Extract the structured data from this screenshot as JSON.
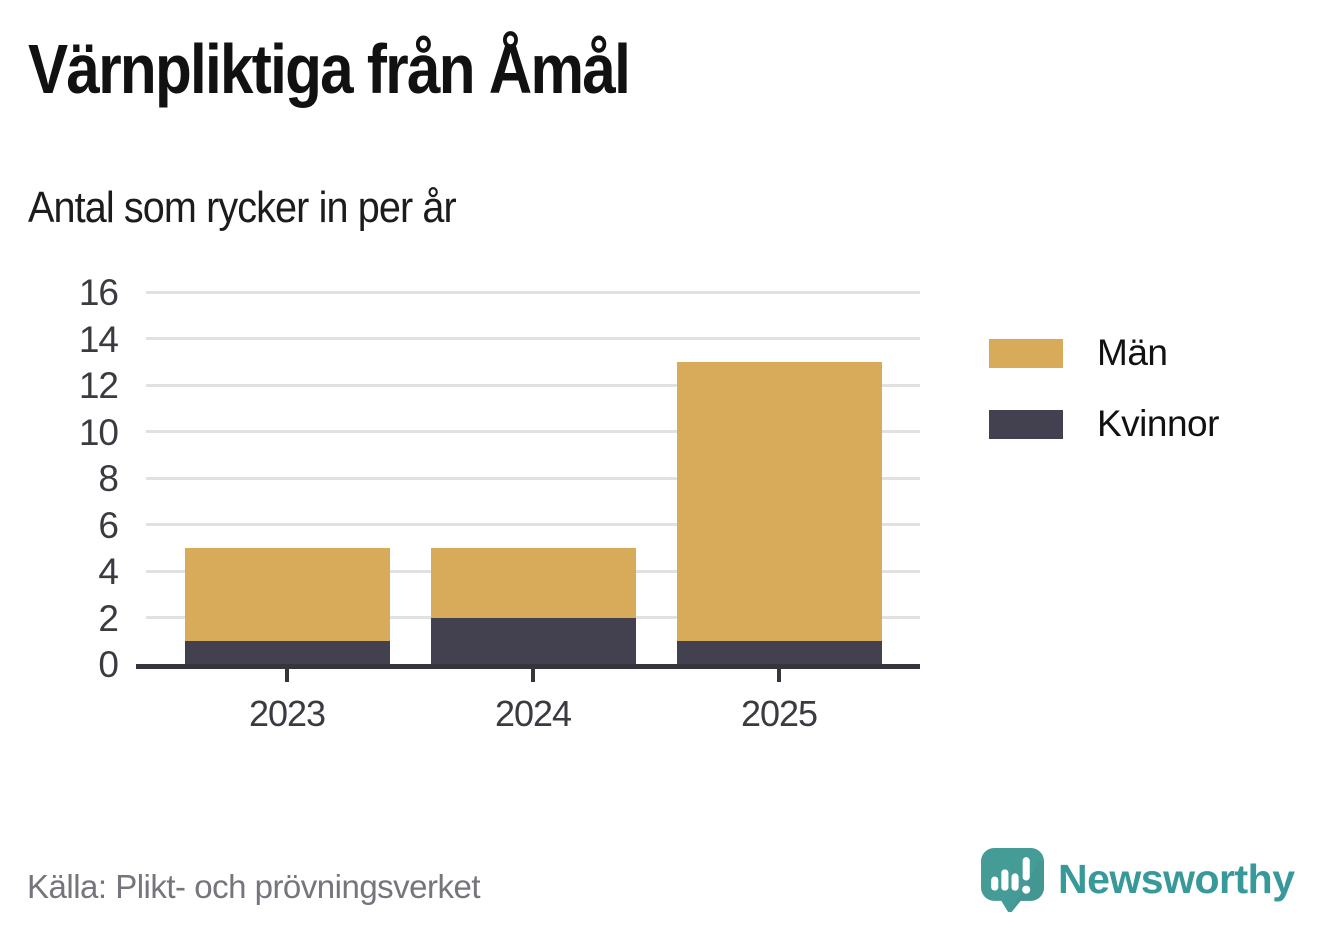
{
  "title": "Värnpliktiga från Åmål",
  "subtitle": "Antal som rycker in per år",
  "source": "Källa: Plikt- och prövningsverket",
  "brand": {
    "name": "Newsworthy",
    "color": "#37999a",
    "icon": "newsworthy-speech-bubble-chart-icon"
  },
  "colors": {
    "men": "#d8ab5b",
    "women": "#434050",
    "axis": "#36343d",
    "gridline": "#e1e1e1",
    "tick_text": "#3b3a41",
    "source_text": "#76757d",
    "background": "#ffffff"
  },
  "chart_data": {
    "type": "bar",
    "stacked": true,
    "title": "Värnpliktiga från Åmål",
    "subtitle": "Antal som rycker in per år",
    "categories": [
      "2023",
      "2024",
      "2025"
    ],
    "series": [
      {
        "name": "Kvinnor",
        "color": "#434050",
        "values": [
          1,
          2,
          1
        ]
      },
      {
        "name": "Män",
        "color": "#d8ab5b",
        "values": [
          4,
          3,
          12
        ]
      }
    ],
    "totals": [
      5,
      5,
      13
    ],
    "xlabel": "",
    "ylabel": "",
    "ylim": [
      0,
      16
    ],
    "yticks": [
      0,
      2,
      4,
      6,
      8,
      10,
      12,
      14,
      16
    ],
    "grid": true,
    "legend_position": "right",
    "legend_order": [
      "Män",
      "Kvinnor"
    ]
  }
}
